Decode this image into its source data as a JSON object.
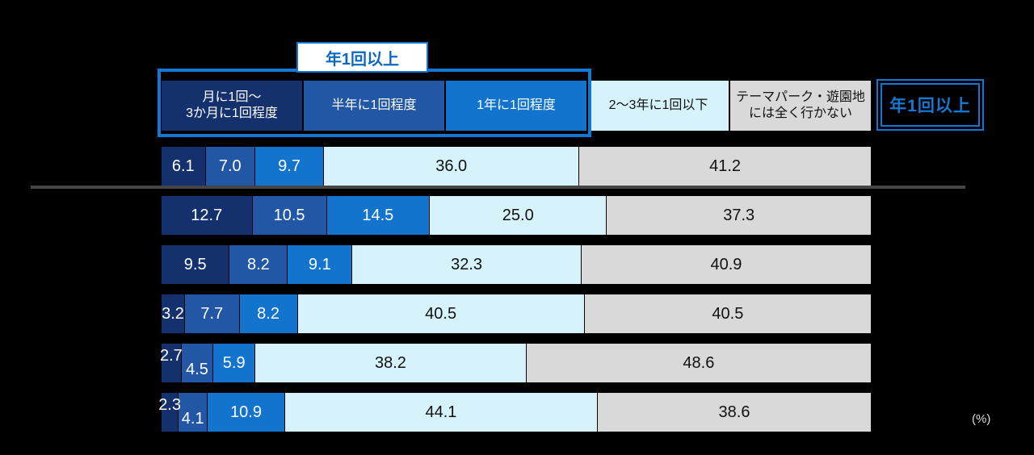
{
  "colors": {
    "background": "#000000",
    "accent_blue": "#1478d2",
    "separator_line": "#454545"
  },
  "annotations": {
    "group_label": "年1回以上",
    "group_span_segments": 3,
    "right_label": "年1回以上"
  },
  "chart_data": {
    "type": "bar",
    "orientation": "horizontal",
    "stacked": true,
    "unit": "(%)",
    "x_range": [
      0,
      100
    ],
    "legend_position": "top",
    "categories": [
      "月に1回〜3か月に1回程度",
      "半年に1回程度",
      "1年に1回程度",
      "2〜3年に1回以下",
      "テーマパーク・遊園地には全く行かない"
    ],
    "legend": [
      {
        "label": "月に1回〜\n3か月に1回程度",
        "color": "#14316e",
        "text_color": "#ffffff"
      },
      {
        "label": "半年に1回程度",
        "color": "#2257a5",
        "text_color": "#ffffff"
      },
      {
        "label": "1年に1回程度",
        "color": "#1374ce",
        "text_color": "#ffffff"
      },
      {
        "label": "2〜3年に1回以下",
        "color": "#d6f3fb",
        "text_color": "#111111"
      },
      {
        "label": "テーマパーク・遊園地\nには全く行かない",
        "color": "#d9d9d9",
        "text_color": "#111111"
      }
    ],
    "rows": [
      {
        "values": [
          6.1,
          7.0,
          9.7,
          36.0,
          41.2
        ]
      },
      {
        "values": [
          12.7,
          10.5,
          14.5,
          25.0,
          37.3
        ]
      },
      {
        "values": [
          9.5,
          8.2,
          9.1,
          32.3,
          40.9
        ]
      },
      {
        "values": [
          3.2,
          7.7,
          8.2,
          40.5,
          40.5
        ]
      },
      {
        "values": [
          2.7,
          4.5,
          5.9,
          38.2,
          48.6
        ]
      },
      {
        "values": [
          2.3,
          4.1,
          10.9,
          44.1,
          38.6
        ]
      }
    ]
  }
}
